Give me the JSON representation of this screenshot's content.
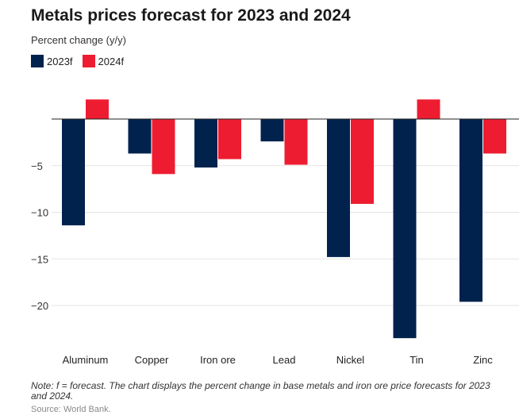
{
  "chart_data": {
    "type": "bar",
    "title": "Metals prices forecast for 2023 and 2024",
    "subtitle": "Percent change (y/y)",
    "categories": [
      "Aluminum",
      "Copper",
      "Iron ore",
      "Lead",
      "Nickel",
      "Tin",
      "Zinc"
    ],
    "series": [
      {
        "name": "2023f",
        "color": "#00224d",
        "values": [
          -11.4,
          -3.7,
          -5.2,
          -2.4,
          -14.8,
          -23.5,
          -19.6
        ]
      },
      {
        "name": "2024f",
        "color": "#ee1c31",
        "values": [
          2.1,
          -5.9,
          -4.3,
          -4.9,
          -9.1,
          2.1,
          -3.7
        ]
      }
    ],
    "yticks": [
      -5,
      -10,
      -15,
      -20
    ],
    "ytick_labels": [
      "−5",
      "−10",
      "−15",
      "−20"
    ],
    "ylim": [
      -24.5,
      2.8
    ],
    "grid": true,
    "legend_position": "top-left"
  },
  "note": "Note: f = forecast. The chart displays the percent change in base metals and iron ore price forecasts for 2023 and 2024.",
  "source": "Source: World Bank."
}
